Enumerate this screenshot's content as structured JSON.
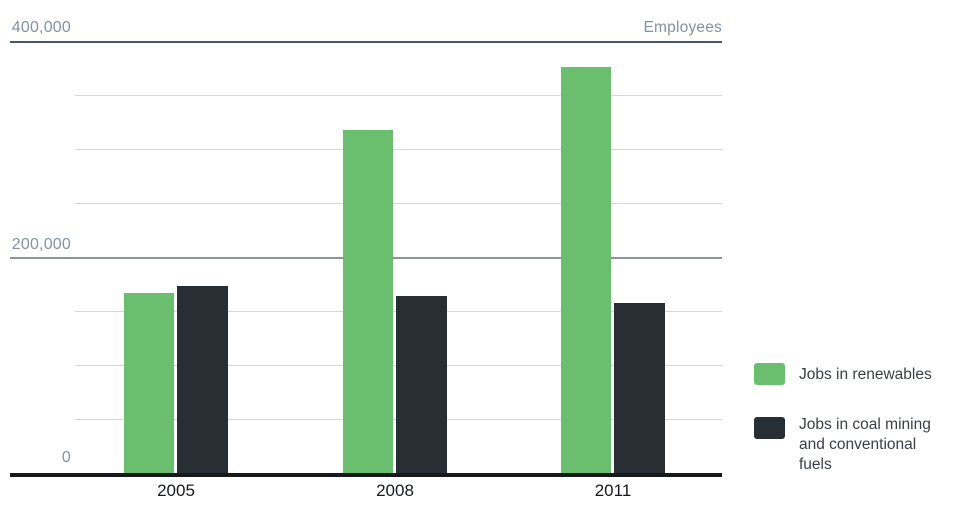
{
  "chart_data": {
    "type": "bar",
    "title": "",
    "unit_label": "Employees",
    "categories": [
      "2005",
      "2008",
      "2011"
    ],
    "series": [
      {
        "name": "Jobs in renewables",
        "color": "#6abf6e",
        "values": [
          167000,
          318000,
          376000
        ]
      },
      {
        "name": "Jobs in coal mining and conventional fuels",
        "color": "#272e34",
        "values": [
          173000,
          164000,
          157000
        ]
      }
    ],
    "ylim": [
      0,
      400000
    ],
    "gridline_step": 50000,
    "major_gridlines": [
      200000,
      400000
    ],
    "grid": true,
    "legend_position": "right",
    "y_ticks": [
      {
        "value": 400000,
        "text": "400,000"
      },
      {
        "value": 200000,
        "text": "200,000"
      },
      {
        "value": 0,
        "text": "0"
      }
    ],
    "legend": [
      {
        "color": "#6abf6e",
        "lines": [
          "Jobs in renewables"
        ]
      },
      {
        "color": "#272e34",
        "lines": [
          "Jobs in coal mining",
          "and conventional",
          "fuels"
        ]
      }
    ]
  },
  "colors": {
    "renewables_green": "#6abf6e",
    "coal_dark": "#272e34",
    "axis_black": "#17191c",
    "label_gray_blue": "#8293a4",
    "top_rule": "#46576c",
    "major_gridline": "#8e9399",
    "minor_gridline": "#d4d7da",
    "legend_text": "#3c4045",
    "background": "#ffffff"
  }
}
